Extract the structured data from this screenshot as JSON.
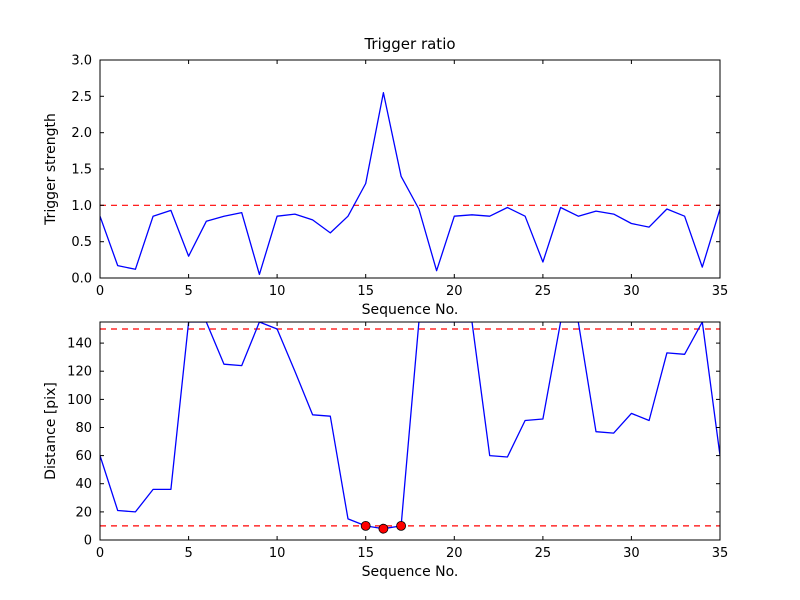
{
  "figure": {
    "background": "#ffffff",
    "line_color": "#0000ff",
    "threshold_color": "#ff0000",
    "marker_color": "#ff0000"
  },
  "chart_data": [
    {
      "name": "trigger-ratio-chart",
      "type": "line",
      "title": "Trigger ratio",
      "xlabel": "Sequence No.",
      "ylabel": "Trigger strength",
      "xlim": [
        0,
        35
      ],
      "ylim": [
        0.0,
        3.0
      ],
      "xticks": [
        0,
        5,
        10,
        15,
        20,
        25,
        30,
        35
      ],
      "xtick_labels": [
        "0",
        "5",
        "10",
        "15",
        "20",
        "25",
        "30",
        "35"
      ],
      "yticks": [
        0.0,
        0.5,
        1.0,
        1.5,
        2.0,
        2.5,
        3.0
      ],
      "ytick_labels": [
        "0.0",
        "0.5",
        "1.0",
        "1.5",
        "2.0",
        "2.5",
        "3.0"
      ],
      "grid": false,
      "legend": null,
      "hlines": [
        {
          "name": "trigger-threshold",
          "y": 1.0,
          "color": "#ff0000",
          "style": "dashed"
        }
      ],
      "series": [
        {
          "name": "trigger-strength",
          "color": "#0000ff",
          "x": [
            0,
            1,
            2,
            3,
            4,
            5,
            6,
            7,
            8,
            9,
            10,
            11,
            12,
            13,
            14,
            15,
            16,
            17,
            18,
            19,
            20,
            21,
            22,
            23,
            24,
            25,
            26,
            27,
            28,
            29,
            30,
            31,
            32,
            33,
            34,
            35
          ],
          "y": [
            0.85,
            0.17,
            0.12,
            0.85,
            0.93,
            0.3,
            0.78,
            0.85,
            0.9,
            0.05,
            0.85,
            0.88,
            0.8,
            0.62,
            0.85,
            1.3,
            2.55,
            1.4,
            0.95,
            0.1,
            0.85,
            0.87,
            0.85,
            0.97,
            0.85,
            0.22,
            0.97,
            0.85,
            0.92,
            0.88,
            0.75,
            0.7,
            0.95,
            0.85,
            0.15,
            0.95
          ]
        }
      ],
      "markers": []
    },
    {
      "name": "distance-chart",
      "type": "line",
      "title": "",
      "xlabel": "Sequence No.",
      "ylabel": "Distance [pix]",
      "xlim": [
        0,
        35
      ],
      "ylim": [
        0,
        155
      ],
      "xticks": [
        0,
        5,
        10,
        15,
        20,
        25,
        30,
        35
      ],
      "xtick_labels": [
        "0",
        "5",
        "10",
        "15",
        "20",
        "25",
        "30",
        "35"
      ],
      "yticks": [
        0,
        20,
        40,
        60,
        80,
        100,
        120,
        140
      ],
      "ytick_labels": [
        "0",
        "20",
        "40",
        "60",
        "80",
        "100",
        "120",
        "140"
      ],
      "grid": false,
      "legend": null,
      "hlines": [
        {
          "name": "upper-distance-threshold",
          "y": 150,
          "color": "#ff0000",
          "style": "dashed"
        },
        {
          "name": "lower-distance-threshold",
          "y": 10,
          "color": "#ff0000",
          "style": "dashed"
        }
      ],
      "series": [
        {
          "name": "distance",
          "color": "#0000ff",
          "x": [
            0,
            1,
            2,
            3,
            4,
            5,
            6,
            7,
            8,
            9,
            10,
            11,
            12,
            13,
            14,
            15,
            16,
            17,
            18,
            19,
            20,
            21,
            22,
            23,
            24,
            25,
            26,
            27,
            28,
            29,
            30,
            31,
            32,
            33,
            34,
            35
          ],
          "y": [
            60,
            21,
            20,
            36,
            36,
            155,
            155,
            125,
            124,
            155,
            150,
            120,
            89,
            88,
            15,
            10,
            8,
            10,
            155,
            155,
            155,
            155,
            60,
            59,
            85,
            86,
            155,
            155,
            77,
            76,
            90,
            85,
            133,
            132,
            155,
            60
          ]
        }
      ],
      "marker_color": "#ff0000",
      "markers": [
        {
          "x": 15,
          "y": 10
        },
        {
          "x": 16,
          "y": 8
        },
        {
          "x": 17,
          "y": 10
        }
      ]
    }
  ]
}
